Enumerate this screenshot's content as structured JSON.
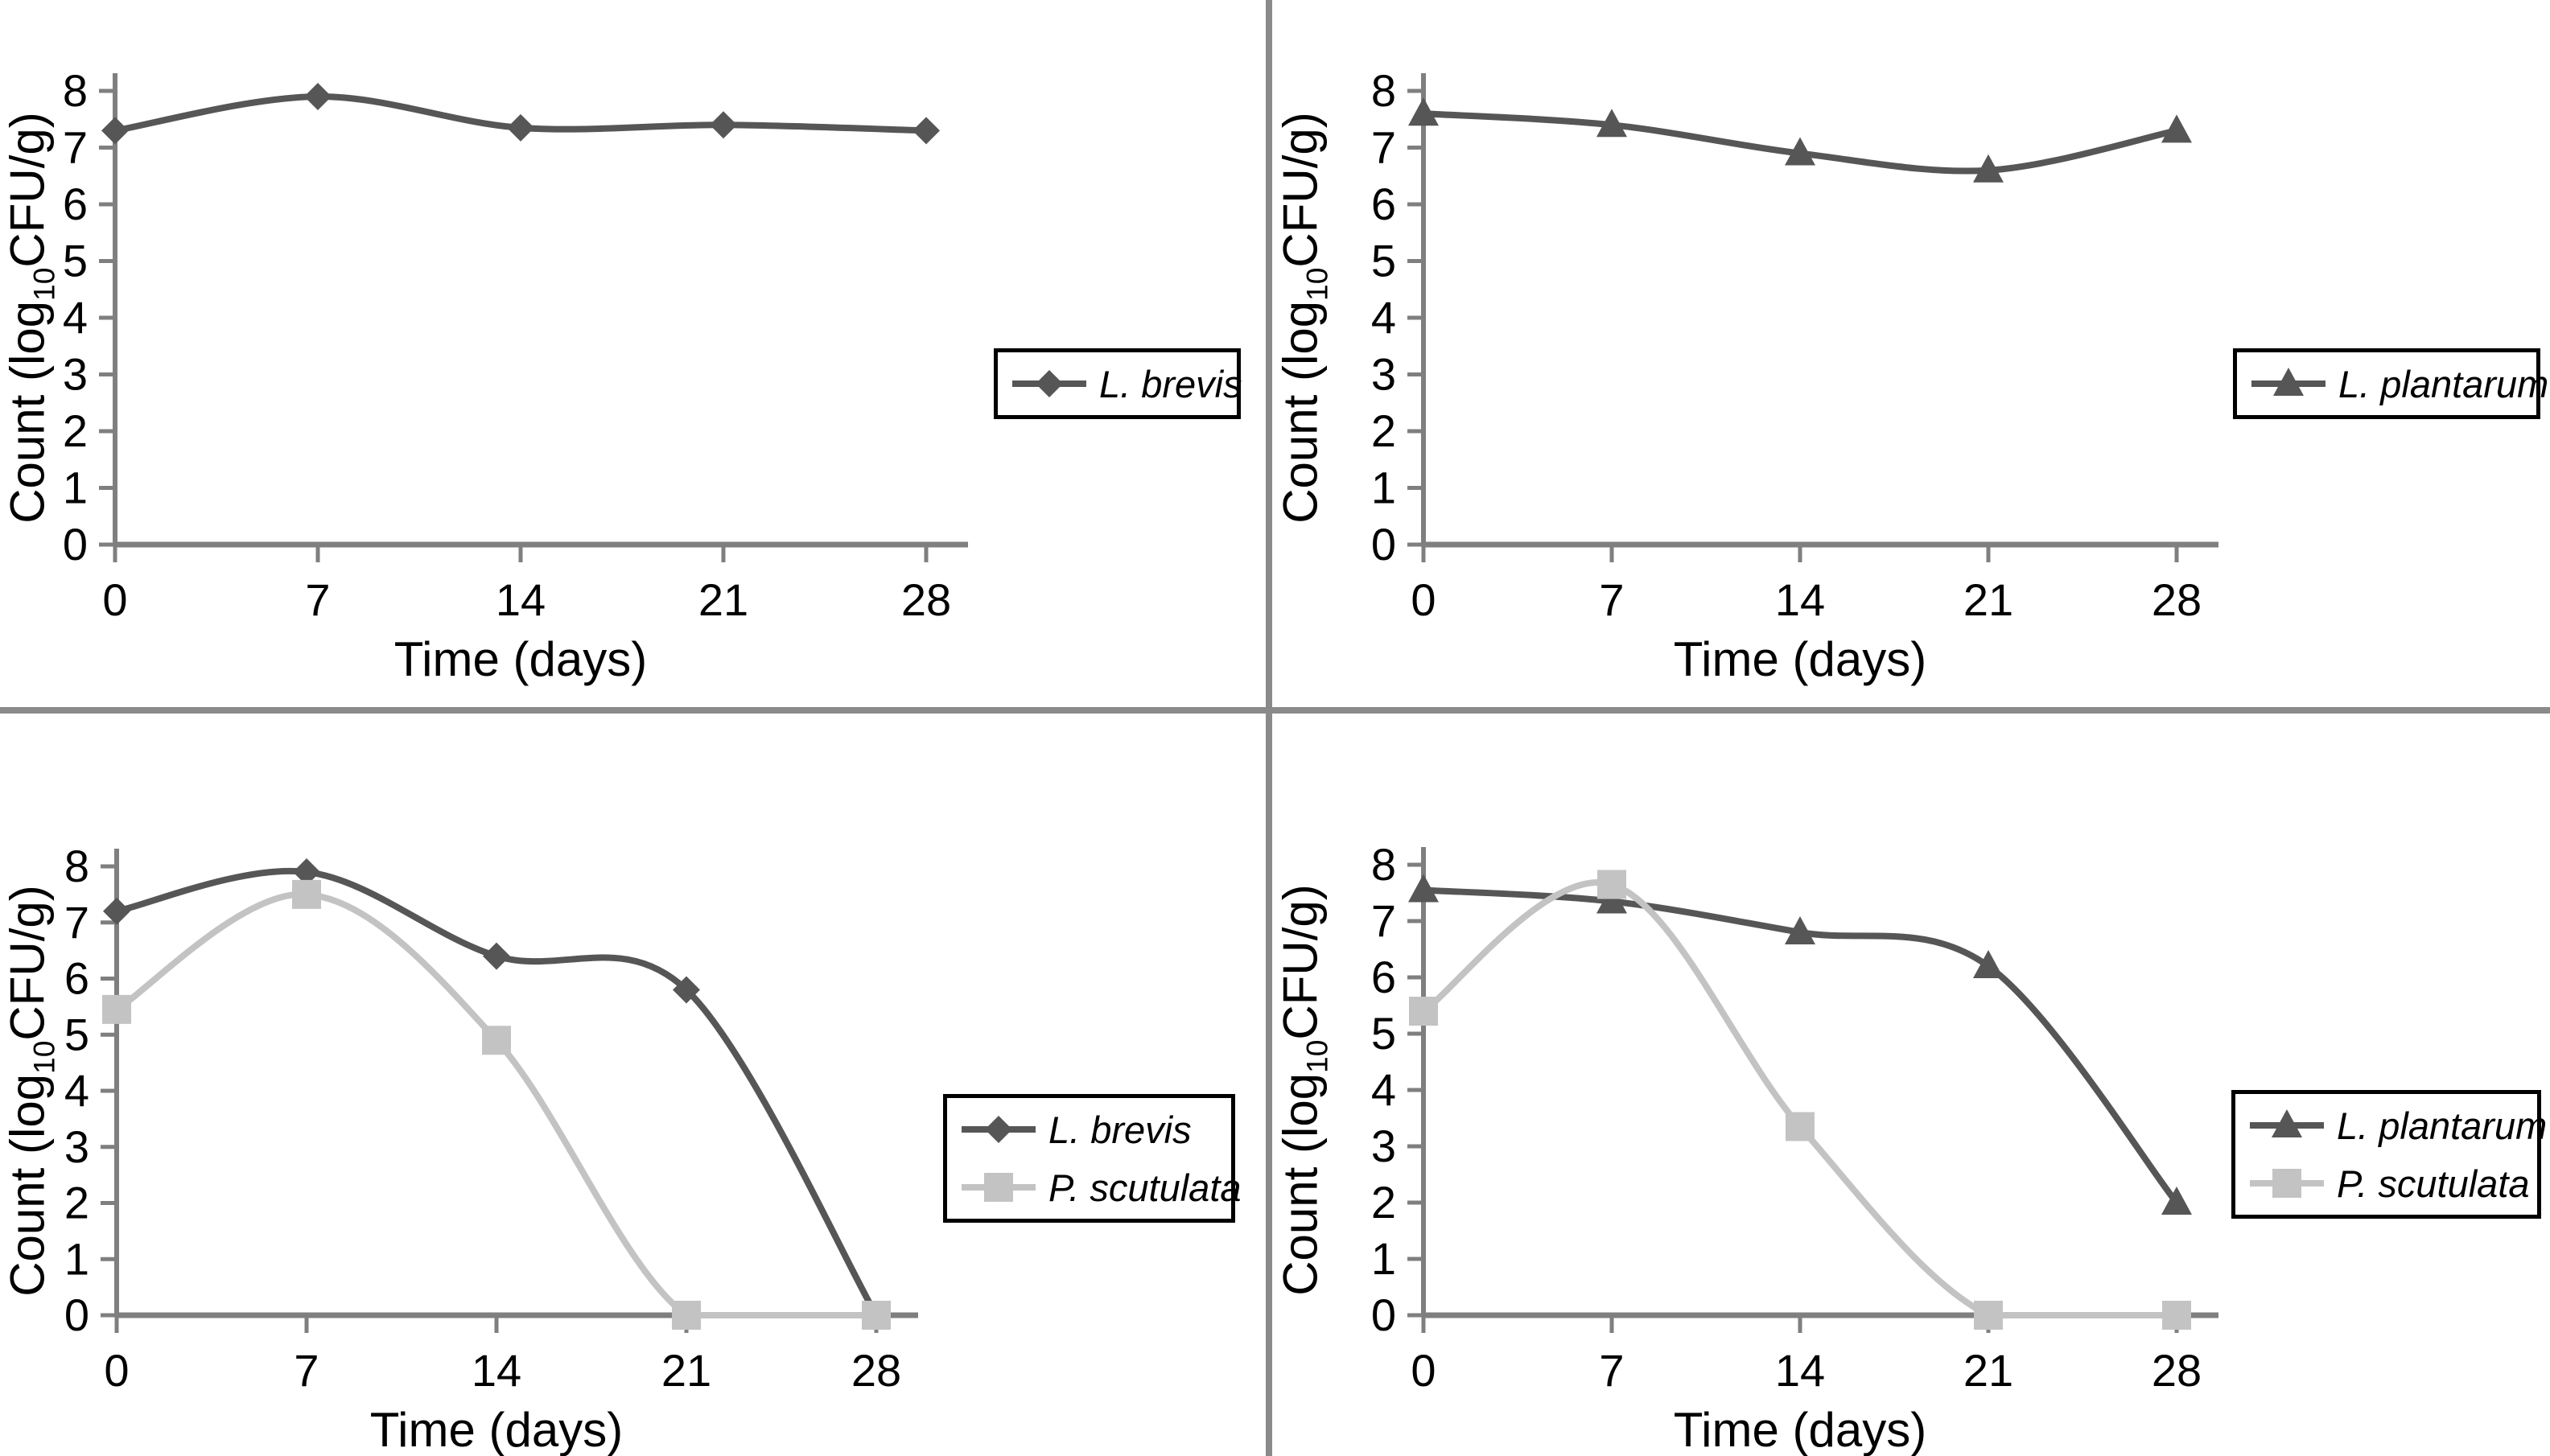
{
  "figure": {
    "xlabel": "Time (days)",
    "ylabel": "Count (log10CFU/g)",
    "ylabel_parts": {
      "prefix": "Count (log",
      "sub": "10",
      "suffix": "CFU/g)"
    }
  },
  "colors": {
    "dark_series": "#565656",
    "light_series": "#c3c3c3",
    "axis": "#7f7f7f",
    "divider": "#8a8a8a",
    "legend_border": "#000000",
    "text": "#000000",
    "background": "#ffffff"
  },
  "chart_data": [
    {
      "id": "top-left",
      "type": "line",
      "title": "",
      "xlabel": "Time (days)",
      "ylabel": "Count (log10CFU/g)",
      "x": [
        0,
        7,
        14,
        21,
        28
      ],
      "xticklabels": [
        "0",
        "7",
        "14",
        "21",
        "28"
      ],
      "ylim": [
        0,
        8
      ],
      "yticks": [
        0,
        1,
        2,
        3,
        4,
        5,
        6,
        7,
        8
      ],
      "grid": false,
      "legend_position": "right",
      "series": [
        {
          "name": "L. brevis",
          "marker": "diamond",
          "color": "dark",
          "values": [
            7.3,
            7.9,
            7.35,
            7.4,
            7.3
          ]
        }
      ]
    },
    {
      "id": "top-right",
      "type": "line",
      "title": "",
      "xlabel": "Time (days)",
      "ylabel": "Count (log10CFU/g)",
      "x": [
        0,
        7,
        14,
        21,
        28
      ],
      "xticklabels": [
        "0",
        "7",
        "14",
        "21",
        "28"
      ],
      "ylim": [
        0,
        8
      ],
      "yticks": [
        0,
        1,
        2,
        3,
        4,
        5,
        6,
        7,
        8
      ],
      "grid": false,
      "legend_position": "right",
      "series": [
        {
          "name": "L. plantarum",
          "marker": "triangle",
          "color": "dark",
          "values": [
            7.6,
            7.4,
            6.9,
            6.6,
            7.3
          ]
        }
      ]
    },
    {
      "id": "bottom-left",
      "type": "line",
      "title": "",
      "xlabel": "Time (days)",
      "ylabel": "Count (log10CFU/g)",
      "x": [
        0,
        7,
        14,
        21,
        28
      ],
      "xticklabels": [
        "0",
        "7",
        "14",
        "21",
        "28"
      ],
      "ylim": [
        0,
        8
      ],
      "yticks": [
        0,
        1,
        2,
        3,
        4,
        5,
        6,
        7,
        8
      ],
      "grid": false,
      "legend_position": "right",
      "series": [
        {
          "name": "L. brevis",
          "marker": "diamond",
          "color": "dark",
          "values": [
            7.2,
            7.9,
            6.4,
            5.8,
            0
          ]
        },
        {
          "name": "P. scutulata",
          "marker": "square",
          "color": "light",
          "values": [
            5.45,
            7.5,
            4.9,
            0,
            0
          ]
        }
      ]
    },
    {
      "id": "bottom-right",
      "type": "line",
      "title": "",
      "xlabel": "Time (days)",
      "ylabel": "Count (log10CFU/g)",
      "x": [
        0,
        7,
        14,
        21,
        28
      ],
      "xticklabels": [
        "0",
        "7",
        "14",
        "21",
        "28"
      ],
      "ylim": [
        0,
        8
      ],
      "yticks": [
        0,
        1,
        2,
        3,
        4,
        5,
        6,
        7,
        8
      ],
      "grid": false,
      "legend_position": "right",
      "series": [
        {
          "name": "L. plantarum",
          "marker": "triangle",
          "color": "dark",
          "values": [
            7.55,
            7.35,
            6.8,
            6.2,
            2.0
          ]
        },
        {
          "name": "P. scutulata",
          "marker": "square",
          "color": "light",
          "values": [
            5.4,
            7.65,
            3.35,
            0,
            0
          ]
        }
      ]
    }
  ]
}
